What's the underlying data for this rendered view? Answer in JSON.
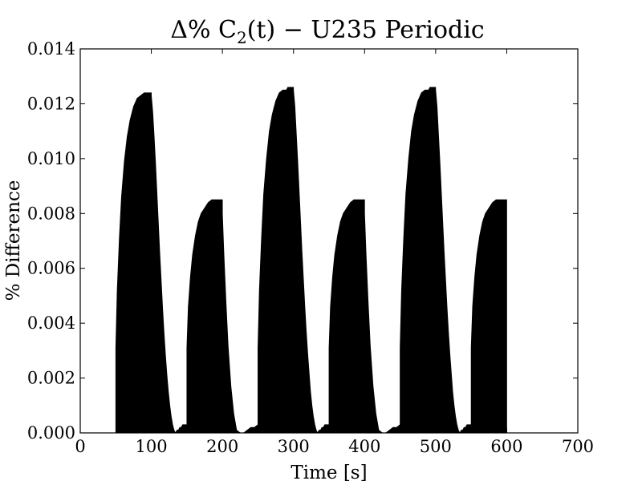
{
  "chart_data": {
    "type": "area",
    "title": {
      "prefix": "Δ% C",
      "subscript": "2",
      "suffix": "(t) − U235 Periodic"
    },
    "xlabel": "Time [s]",
    "ylabel": "% Difference",
    "xlim": [
      0,
      700
    ],
    "ylim": [
      0,
      0.014
    ],
    "x_ticks": [
      0,
      100,
      200,
      300,
      400,
      500,
      600,
      700
    ],
    "x_tick_labels": [
      "0",
      "100",
      "200",
      "300",
      "400",
      "500",
      "600",
      "700"
    ],
    "y_ticks": [
      0,
      0.002,
      0.004,
      0.006,
      0.008,
      0.01,
      0.012,
      0.014
    ],
    "y_tick_labels": [
      "0.000",
      "0.002",
      "0.004",
      "0.006",
      "0.008",
      "0.010",
      "0.012",
      "0.014"
    ],
    "grid": false,
    "legend": "none",
    "series": [
      {
        "color": "#000000",
        "x": [
          0,
          50,
          50,
          52,
          55,
          58,
          62,
          66,
          70,
          75,
          80,
          85,
          90,
          92,
          100,
          100,
          102,
          104,
          106,
          108,
          110,
          112,
          114,
          116,
          118,
          120,
          122,
          124,
          126,
          128,
          130,
          132,
          134,
          136,
          138,
          140,
          142,
          144,
          146,
          148,
          150,
          150,
          152,
          155,
          158,
          162,
          166,
          170,
          175,
          180,
          185,
          190,
          200,
          200,
          202,
          205,
          208,
          212,
          216,
          220,
          225,
          230,
          235,
          240,
          245,
          250,
          250,
          252,
          255,
          258,
          262,
          266,
          270,
          275,
          280,
          285,
          290,
          292,
          300,
          300,
          302,
          304,
          306,
          308,
          310,
          312,
          314,
          316,
          318,
          320,
          322,
          324,
          326,
          328,
          330,
          332,
          334,
          336,
          338,
          340,
          342,
          344,
          346,
          348,
          350,
          350,
          352,
          355,
          358,
          362,
          366,
          370,
          375,
          380,
          385,
          390,
          400,
          400,
          402,
          405,
          408,
          412,
          416,
          420,
          425,
          430,
          435,
          440,
          445,
          450,
          450,
          452,
          455,
          458,
          462,
          466,
          470,
          475,
          480,
          485,
          490,
          492,
          500,
          500,
          502,
          504,
          506,
          508,
          510,
          512,
          514,
          516,
          518,
          520,
          522,
          524,
          526,
          528,
          530,
          532,
          534,
          536,
          538,
          540,
          542,
          544,
          546,
          548,
          550,
          550,
          552,
          555,
          558,
          562,
          566,
          570,
          575,
          580,
          585,
          590,
          600,
          600,
          700
        ],
        "y": [
          0,
          0,
          0.0031,
          0.0052,
          0.0071,
          0.0086,
          0.0099,
          0.0108,
          0.0114,
          0.0119,
          0.0122,
          0.0123,
          0.0124,
          0.0124,
          0.0124,
          0.0123,
          0.0117,
          0.0108,
          0.0098,
          0.0087,
          0.0076,
          0.0065,
          0.0055,
          0.0045,
          0.0036,
          0.0028,
          0.0021,
          0.0015,
          0.001,
          0.0006,
          0.0003,
          0.0001,
          0.0,
          0.0001,
          0.0001,
          0.0002,
          0.0002,
          0.0003,
          0.0003,
          0.0003,
          0.0003,
          0.0031,
          0.0046,
          0.0057,
          0.0065,
          0.0072,
          0.0077,
          0.008,
          0.0082,
          0.0084,
          0.0085,
          0.0085,
          0.0085,
          0.008,
          0.0066,
          0.0048,
          0.0032,
          0.0017,
          0.0007,
          0.0001,
          0.0,
          0.0,
          0.0001,
          0.0002,
          0.0002,
          0.0003,
          0.0031,
          0.0052,
          0.0071,
          0.0087,
          0.01,
          0.011,
          0.0116,
          0.0121,
          0.0124,
          0.0125,
          0.0125,
          0.0126,
          0.0126,
          0.0125,
          0.0119,
          0.0109,
          0.0099,
          0.0088,
          0.0077,
          0.0066,
          0.0056,
          0.0046,
          0.0037,
          0.0029,
          0.0022,
          0.0015,
          0.001,
          0.0006,
          0.0003,
          0.0001,
          0.0,
          0.0001,
          0.0001,
          0.0002,
          0.0002,
          0.0003,
          0.0003,
          0.0003,
          0.0003,
          0.0031,
          0.0046,
          0.0057,
          0.0065,
          0.0072,
          0.0077,
          0.008,
          0.0082,
          0.0084,
          0.0085,
          0.0085,
          0.0085,
          0.008,
          0.0066,
          0.0048,
          0.0032,
          0.0017,
          0.0007,
          0.0001,
          0.0,
          0.0,
          0.0001,
          0.0002,
          0.0002,
          0.0003,
          0.0031,
          0.0052,
          0.0071,
          0.0087,
          0.01,
          0.011,
          0.0116,
          0.0121,
          0.0124,
          0.0125,
          0.0125,
          0.0126,
          0.0126,
          0.0125,
          0.0119,
          0.0109,
          0.0099,
          0.0088,
          0.0077,
          0.0066,
          0.0056,
          0.0046,
          0.0037,
          0.0029,
          0.0022,
          0.0015,
          0.001,
          0.0006,
          0.0003,
          0.0001,
          0.0,
          0.0001,
          0.0001,
          0.0002,
          0.0002,
          0.0003,
          0.0003,
          0.0003,
          0.0003,
          0.0031,
          0.0046,
          0.0057,
          0.0065,
          0.0072,
          0.0077,
          0.008,
          0.0082,
          0.0084,
          0.0085,
          0.0085,
          0.0085,
          0,
          0
        ]
      }
    ]
  }
}
